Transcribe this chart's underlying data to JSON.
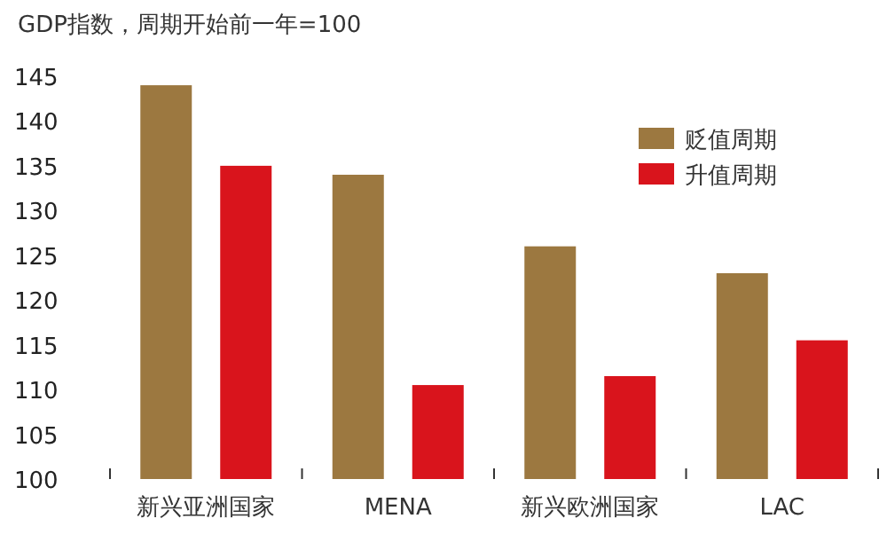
{
  "chart_data": {
    "type": "bar",
    "title": "GDP指数，周期开始前一年=100",
    "categories": [
      "新兴亚洲国家",
      "MENA",
      "新兴欧洲国家",
      "LAC"
    ],
    "series": [
      {
        "name": "贬值周期",
        "color": "#9c7840",
        "values": [
          144,
          134,
          126,
          123
        ]
      },
      {
        "name": "升值周期",
        "color": "#d9141c",
        "values": [
          135,
          110.5,
          111.5,
          115.5
        ]
      }
    ],
    "ylim": [
      100,
      145
    ],
    "yticks": [
      100,
      105,
      110,
      115,
      120,
      125,
      130,
      135,
      140,
      145
    ],
    "grid": false,
    "legend": "top right"
  }
}
